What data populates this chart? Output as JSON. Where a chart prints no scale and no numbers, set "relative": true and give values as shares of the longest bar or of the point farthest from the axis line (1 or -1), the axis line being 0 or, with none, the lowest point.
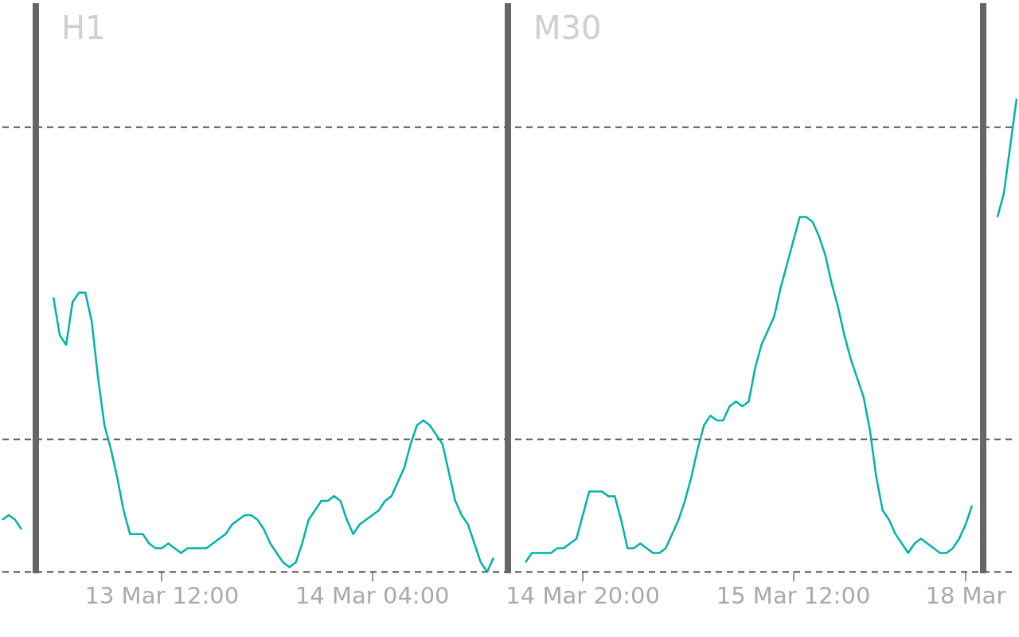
{
  "chart_data": {
    "type": "line",
    "relative": true,
    "line_style": "solid",
    "marker": "none",
    "grid": false,
    "legend": false,
    "categories": [
      null,
      null,
      null,
      null,
      null,
      null,
      null,
      null,
      null,
      null,
      null,
      null,
      null,
      null,
      null,
      null,
      null,
      null,
      null,
      null,
      null,
      null,
      null,
      null,
      null,
      "13 Mar 12:00",
      null,
      null,
      null,
      null,
      null,
      null,
      null,
      null,
      null,
      null,
      null,
      null,
      null,
      null,
      null,
      null,
      null,
      null,
      null,
      null,
      null,
      null,
      null,
      null,
      null,
      null,
      null,
      null,
      null,
      null,
      null,
      null,
      "14 Mar 04:00",
      null,
      null,
      null,
      null,
      null,
      null,
      null,
      null,
      null,
      null,
      null,
      null,
      null,
      null,
      null,
      null,
      null,
      null,
      null,
      null,
      null,
      null,
      null,
      null,
      null,
      null,
      null,
      null,
      null,
      null,
      null,
      null,
      "14 Mar 20:00",
      null,
      null,
      null,
      null,
      null,
      null,
      null,
      null,
      null,
      null,
      null,
      null,
      null,
      null,
      null,
      null,
      null,
      null,
      null,
      null,
      null,
      null,
      null,
      null,
      null,
      null,
      null,
      null,
      null,
      null,
      null,
      null,
      "15 Mar 12:00",
      null,
      null,
      null,
      null,
      null,
      null,
      null,
      null,
      null,
      null,
      null,
      null,
      null,
      null,
      null,
      null,
      null,
      null,
      null,
      null,
      null,
      null,
      null,
      null,
      null,
      null,
      "18 Mar",
      null,
      null,
      null,
      null,
      null,
      null,
      null,
      null
    ],
    "series": [
      {
        "color": "#00b3a8",
        "values": [
          0.11,
          0.12,
          0.11,
          0.09,
          null,
          null,
          null,
          null,
          null,
          null,
          null,
          null,
          null,
          null,
          null,
          null,
          null,
          null,
          null,
          null,
          null,
          null,
          null,
          null,
          null,
          null,
          null,
          null,
          null,
          null,
          null,
          null,
          null,
          null,
          null,
          null,
          null,
          null,
          null,
          null,
          null,
          null,
          null,
          null,
          null,
          null,
          null,
          null,
          null,
          null,
          null,
          null,
          null,
          null,
          null,
          null,
          null,
          null,
          null,
          null,
          null,
          null,
          null,
          null,
          null,
          null,
          null,
          null,
          null,
          null,
          null,
          null,
          null,
          null,
          null,
          null,
          null,
          null,
          null,
          null,
          null,
          null,
          null,
          null,
          null,
          null,
          null,
          null,
          null,
          null,
          null,
          null,
          null,
          null,
          null,
          null,
          null,
          null,
          null,
          null,
          null,
          null,
          null,
          null,
          null,
          null,
          null,
          null,
          null,
          null,
          null,
          null,
          null,
          null,
          null,
          null,
          null,
          null,
          null,
          null,
          null,
          null,
          null,
          null,
          null,
          null,
          null,
          null,
          null,
          null,
          null,
          null,
          null,
          null,
          null,
          null,
          null,
          null,
          null,
          null,
          null,
          null,
          null,
          null,
          null,
          null,
          null,
          null,
          null,
          null,
          null,
          null,
          null,
          null,
          null,
          null,
          null,
          null,
          null,
          null
        ]
      },
      {
        "color": "#00b3a8",
        "values": [
          null,
          null,
          null,
          null,
          null,
          null,
          null,
          null,
          0.58,
          0.5,
          0.48,
          0.57,
          0.59,
          0.59,
          0.53,
          0.41,
          0.31,
          0.26,
          0.2,
          0.13,
          0.08,
          0.08,
          0.08,
          0.06,
          0.05,
          0.05,
          0.06,
          0.05,
          0.04,
          0.05,
          0.05,
          0.05,
          0.05,
          0.06,
          0.07,
          0.08,
          0.1,
          0.11,
          0.12,
          0.12,
          0.11,
          0.09,
          0.06,
          0.04,
          0.02,
          0.01,
          0.02,
          0.06,
          0.11,
          0.13,
          0.15,
          0.15,
          0.16,
          0.15,
          0.11,
          0.08,
          0.1,
          0.11,
          0.12,
          0.13,
          0.15,
          0.16,
          0.19,
          0.22,
          0.27,
          0.31,
          0.32,
          0.31,
          0.29,
          0.27,
          0.21,
          0.15,
          0.12,
          0.1,
          0.06,
          0.02,
          0,
          0.03,
          null,
          null,
          null,
          null,
          null,
          null,
          null,
          null,
          null,
          null,
          null,
          null,
          null,
          null,
          null,
          null,
          null,
          null,
          null,
          null,
          null,
          null,
          null,
          null,
          null,
          null,
          null,
          null,
          null,
          null,
          null,
          null,
          null,
          null,
          null,
          null,
          null,
          null,
          null,
          null,
          null,
          null,
          null,
          null,
          null,
          null,
          null,
          null,
          null,
          null,
          null,
          null,
          null,
          null,
          null,
          null,
          null,
          null,
          null,
          null,
          null,
          null,
          null,
          null,
          null,
          null,
          null,
          null,
          null,
          null,
          null,
          null,
          null,
          null,
          null,
          null,
          null,
          null,
          null,
          null,
          null,
          null
        ]
      },
      {
        "color": "#00b3a8",
        "values": [
          null,
          null,
          null,
          null,
          null,
          null,
          null,
          null,
          null,
          null,
          null,
          null,
          null,
          null,
          null,
          null,
          null,
          null,
          null,
          null,
          null,
          null,
          null,
          null,
          null,
          null,
          null,
          null,
          null,
          null,
          null,
          null,
          null,
          null,
          null,
          null,
          null,
          null,
          null,
          null,
          null,
          null,
          null,
          null,
          null,
          null,
          null,
          null,
          null,
          null,
          null,
          null,
          null,
          null,
          null,
          null,
          null,
          null,
          null,
          null,
          null,
          null,
          null,
          null,
          null,
          null,
          null,
          null,
          null,
          null,
          null,
          null,
          null,
          null,
          null,
          null,
          null,
          null,
          null,
          null,
          null,
          null,
          0.02,
          0.04,
          0.04,
          0.04,
          0.04,
          0.05,
          0.05,
          0.06,
          0.07,
          0.12,
          0.17,
          0.17,
          0.17,
          0.16,
          0.16,
          0.11,
          0.05,
          0.05,
          0.06,
          0.05,
          0.04,
          0.04,
          0.05,
          0.08,
          0.11,
          0.15,
          0.2,
          0.26,
          0.31,
          0.33,
          0.32,
          0.32,
          0.35,
          0.36,
          0.35,
          0.36,
          0.43,
          0.48,
          0.51,
          0.54,
          0.6,
          0.65,
          0.7,
          0.75,
          0.75,
          0.74,
          0.71,
          0.67,
          0.61,
          0.56,
          0.5,
          0.45,
          0.41,
          0.37,
          0.3,
          0.2,
          0.13,
          0.11,
          0.08,
          0.06,
          0.04,
          0.06,
          0.07,
          0.06,
          0.05,
          0.04,
          0.04,
          0.05,
          0.07,
          0.1,
          0.14,
          null,
          null,
          null,
          null,
          null,
          null,
          null
        ]
      },
      {
        "color": "#00b3a8",
        "values": [
          null,
          null,
          null,
          null,
          null,
          null,
          null,
          null,
          null,
          null,
          null,
          null,
          null,
          null,
          null,
          null,
          null,
          null,
          null,
          null,
          null,
          null,
          null,
          null,
          null,
          null,
          null,
          null,
          null,
          null,
          null,
          null,
          null,
          null,
          null,
          null,
          null,
          null,
          null,
          null,
          null,
          null,
          null,
          null,
          null,
          null,
          null,
          null,
          null,
          null,
          null,
          null,
          null,
          null,
          null,
          null,
          null,
          null,
          null,
          null,
          null,
          null,
          null,
          null,
          null,
          null,
          null,
          null,
          null,
          null,
          null,
          null,
          null,
          null,
          null,
          null,
          null,
          null,
          null,
          null,
          null,
          null,
          null,
          null,
          null,
          null,
          null,
          null,
          null,
          null,
          null,
          null,
          null,
          null,
          null,
          null,
          null,
          null,
          null,
          null,
          null,
          null,
          null,
          null,
          null,
          null,
          null,
          null,
          null,
          null,
          null,
          null,
          null,
          null,
          null,
          null,
          null,
          null,
          null,
          null,
          null,
          null,
          null,
          null,
          null,
          null,
          null,
          null,
          null,
          null,
          null,
          null,
          null,
          null,
          null,
          null,
          null,
          null,
          null,
          null,
          null,
          null,
          null,
          null,
          null,
          null,
          null,
          null,
          null,
          null,
          null,
          null,
          null,
          null,
          null,
          null,
          0.75,
          0.8,
          0.9,
          1
        ]
      }
    ],
    "ref_lines": [
      {
        "axis": "y",
        "value": 0.94,
        "color": "#555555",
        "line_style": "dashed"
      },
      {
        "axis": "y",
        "value": 0.28,
        "color": "#555555",
        "line_style": "dashed"
      },
      {
        "axis": "y",
        "value": 0,
        "color": "#555555",
        "line_style": "dashed"
      }
    ],
    "annotations": [
      "H1",
      "M30"
    ]
  }
}
